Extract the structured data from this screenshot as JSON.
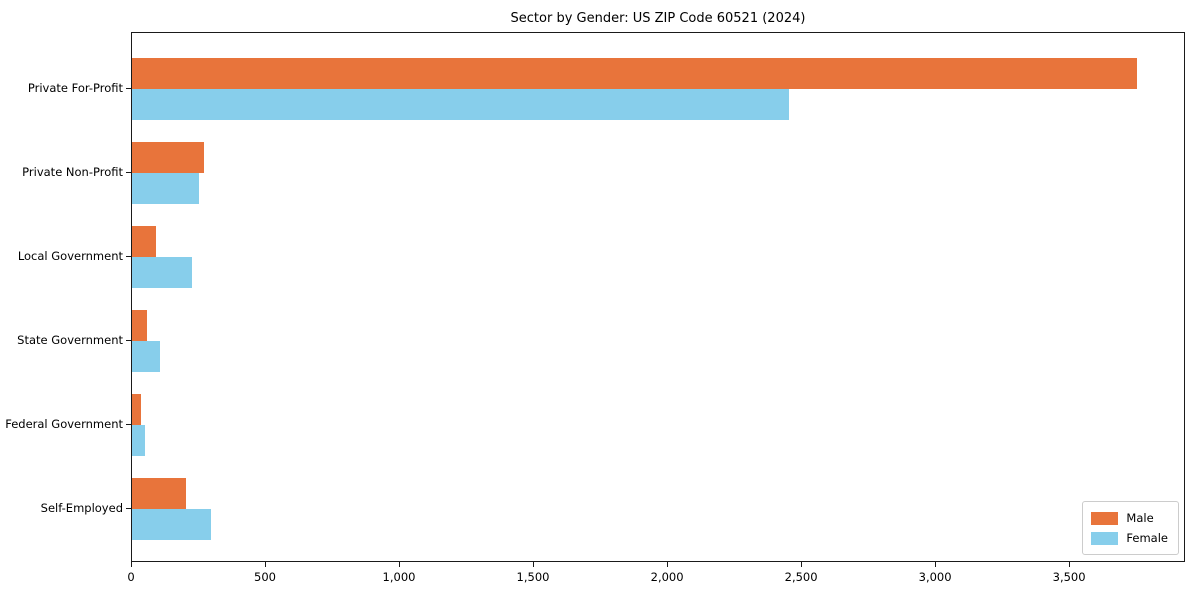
{
  "title": "Sector by Gender: US ZIP Code 60521 (2024)",
  "colors": {
    "male": "#e8743b",
    "female": "#87ceeb",
    "axis": "#1a1a1a",
    "legend_border": "#cccccc",
    "background": "#ffffff"
  },
  "chart_data": {
    "type": "bar",
    "orientation": "horizontal",
    "title": "Sector by Gender: US ZIP Code 60521 (2024)",
    "categories": [
      "Private For-Profit",
      "Private Non-Profit",
      "Local Government",
      "State Government",
      "Federal Government",
      "Self-Employed"
    ],
    "series": [
      {
        "name": "Male",
        "color": "#e8743b",
        "values": [
          3750,
          270,
          90,
          55,
          35,
          200
        ]
      },
      {
        "name": "Female",
        "color": "#87ceeb",
        "values": [
          2450,
          250,
          225,
          105,
          50,
          295
        ]
      }
    ],
    "xlabel": "",
    "ylabel": "",
    "xlim": [
      0,
      3925
    ],
    "x_ticks": [
      0,
      500,
      1000,
      1500,
      2000,
      2500,
      3000,
      3500
    ],
    "x_tick_labels": [
      "0",
      "500",
      "1,000",
      "1,500",
      "2,000",
      "2,500",
      "3,000",
      "3,500"
    ],
    "grid": false,
    "legend_position": "lower right",
    "legend_items": [
      "Male",
      "Female"
    ]
  }
}
